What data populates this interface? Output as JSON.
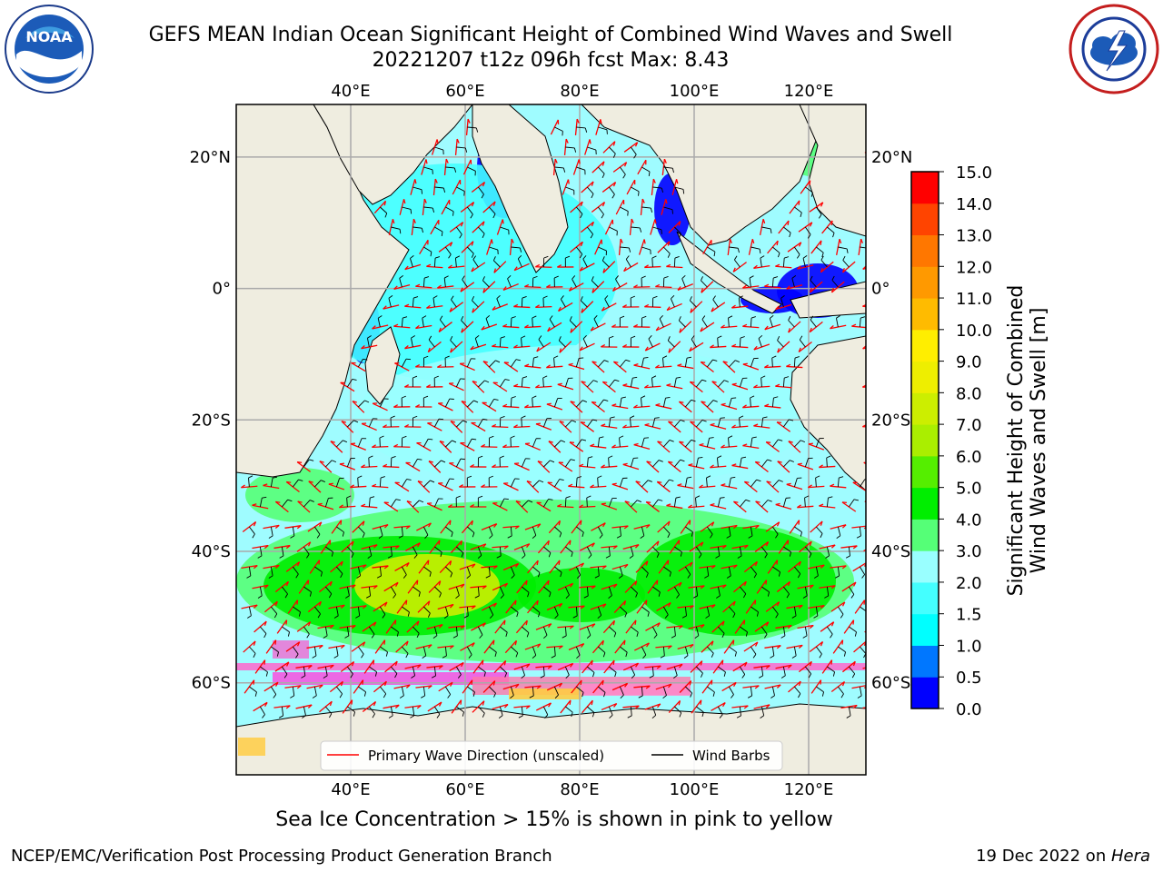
{
  "title": {
    "line1": "GEFS MEAN Indian Ocean Significant Height of Combined Wind Waves and Swell",
    "line2": "20221207 t12z 096h fcst   Max: 8.43"
  },
  "logos": {
    "left": {
      "icon": "noaa-logo",
      "text": "NOAA"
    },
    "right": {
      "icon": "nws-logo"
    }
  },
  "map": {
    "longitude_ticks": [
      "40°E",
      "60°E",
      "80°E",
      "100°E",
      "120°E"
    ],
    "latitude_ticks": [
      "20°N",
      "0°",
      "20°S",
      "40°S",
      "60°S"
    ],
    "extent": {
      "lon_min": 20,
      "lon_max": 130,
      "lat_min": -74,
      "lat_max": 28
    },
    "ocean_color": "#9ffcff",
    "land_color": "#efede0"
  },
  "legend": {
    "wave_direction": "Primary Wave Direction (unscaled)",
    "wind_barbs": "Wind Barbs",
    "wave_color": "#ff0000",
    "barb_color": "#000000"
  },
  "colorbar": {
    "label_line1": "Significant Height of Combined",
    "label_line2": "Wind Waves and Swell [m]",
    "ticks": [
      "0.0",
      "0.5",
      "1.0",
      "1.5",
      "2.0",
      "3.0",
      "4.0",
      "5.0",
      "6.0",
      "7.0",
      "8.0",
      "9.0",
      "10.0",
      "11.0",
      "12.0",
      "13.0",
      "14.0",
      "15.0"
    ],
    "colors": [
      "#0000ff",
      "#0077ff",
      "#00ffff",
      "#44ffff",
      "#99ffff",
      "#55ff77",
      "#00ee00",
      "#55ee00",
      "#aaee00",
      "#ccee00",
      "#eeee00",
      "#ffee00",
      "#ffbb00",
      "#ff9900",
      "#ff7700",
      "#ff4400",
      "#ff0000"
    ]
  },
  "notes": {
    "sea_ice": "Sea Ice Concentration > 15% is shown in pink to yellow"
  },
  "footer": {
    "left": "NCEP/EMC/Verification Post Processing Product Generation Branch",
    "right_date": "19 Dec 2022 on ",
    "right_host": "Hera"
  }
}
